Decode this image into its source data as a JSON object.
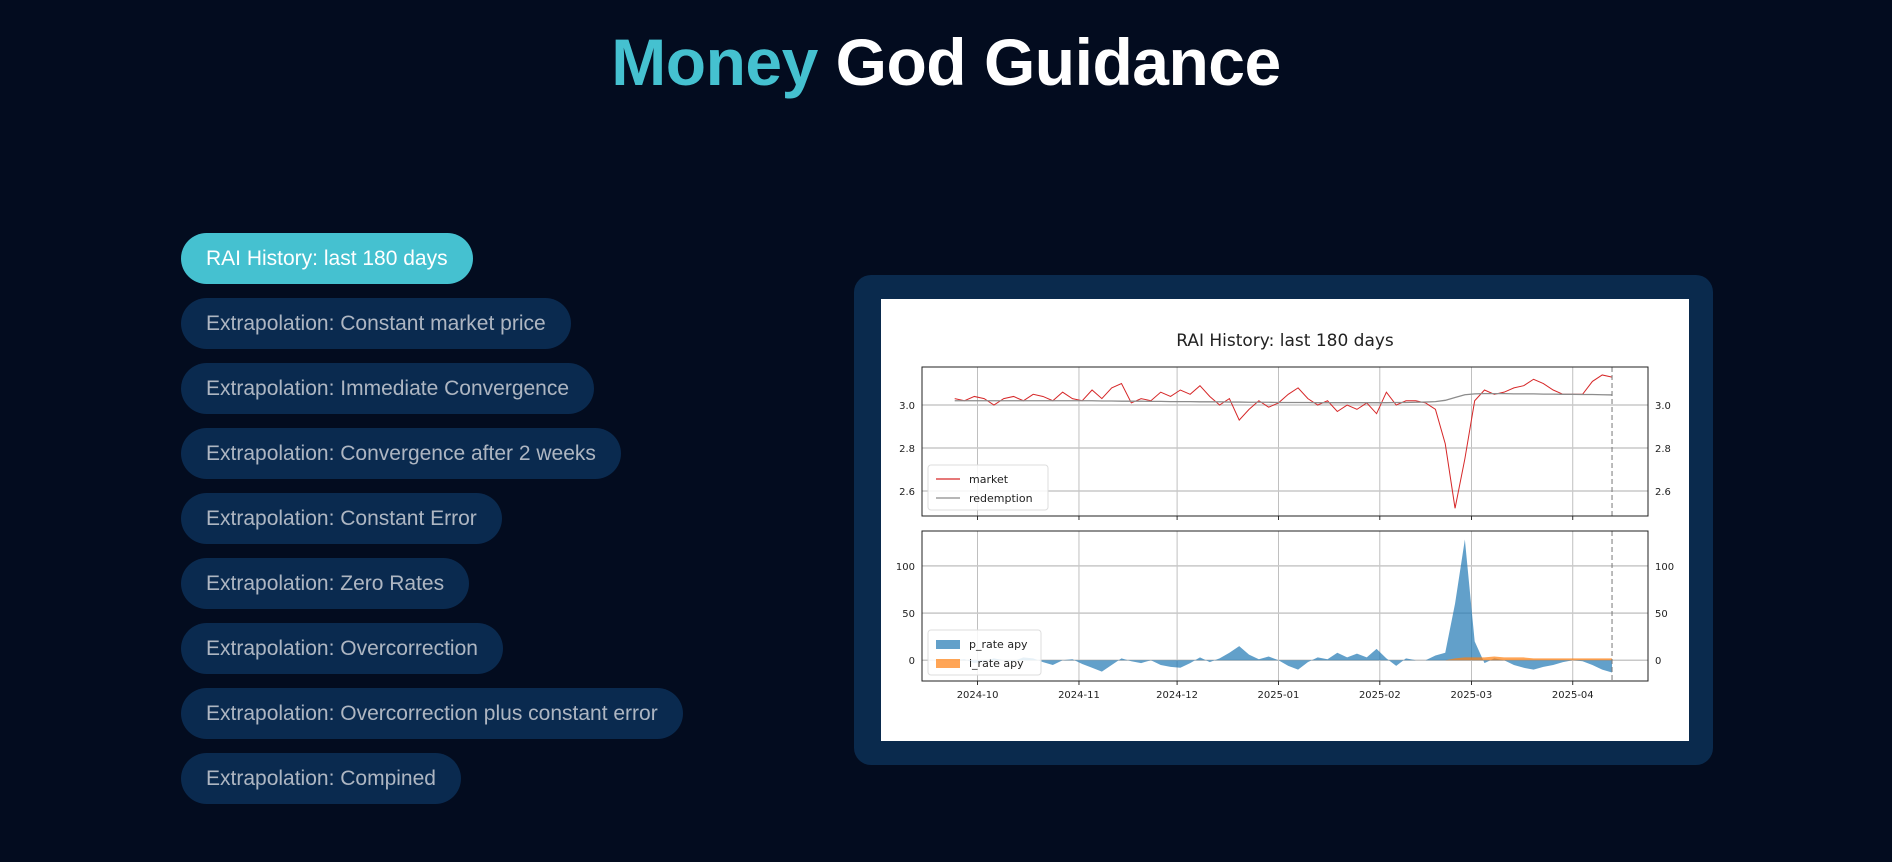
{
  "header": {
    "title_accent": "Money",
    "title_rest": "God Guidance"
  },
  "menu": {
    "items": [
      {
        "label": "RAI History: last 180 days",
        "active": true
      },
      {
        "label": "Extrapolation: Constant market price",
        "active": false
      },
      {
        "label": "Extrapolation: Immediate Convergence",
        "active": false
      },
      {
        "label": "Extrapolation: Convergence after 2 weeks",
        "active": false
      },
      {
        "label": "Extrapolation: Constant Error",
        "active": false
      },
      {
        "label": "Extrapolation: Zero Rates",
        "active": false
      },
      {
        "label": "Extrapolation: Overcorrection",
        "active": false
      },
      {
        "label": "Extrapolation: Overcorrection plus constant error",
        "active": false
      },
      {
        "label": "Extrapolation: Compined",
        "active": false
      }
    ]
  },
  "colors": {
    "accent": "#45c1d0",
    "market": "#d62728",
    "redemption": "#8c8c8c",
    "p_rate": "#1f77b4",
    "i_rate": "#ff7f0e"
  },
  "chart_data": {
    "type": "line",
    "title": "RAI History: last 180 days",
    "start_date": "2024-09-24",
    "step_days": 3,
    "x_range": [
      "2024-09-14",
      "2025-04-24"
    ],
    "now_marker": "2025-04-13",
    "x_ticks": [
      "2024-10",
      "2024-11",
      "2024-12",
      "2025-01",
      "2025-02",
      "2025-03",
      "2025-04"
    ],
    "grid": true,
    "panels": [
      {
        "ylim": [
          2.484,
          3.177
        ],
        "y_ticks": [
          "2.6",
          "2.8",
          "3.0"
        ],
        "legend": "lower-left",
        "series": [
          {
            "name": "market",
            "type": "line",
            "values": [
              3.03,
              3.02,
              3.04,
              3.03,
              3.0,
              3.03,
              3.04,
              3.02,
              3.05,
              3.04,
              3.02,
              3.06,
              3.03,
              3.02,
              3.07,
              3.03,
              3.08,
              3.1,
              3.01,
              3.03,
              3.02,
              3.06,
              3.04,
              3.07,
              3.05,
              3.09,
              3.04,
              3.0,
              3.03,
              2.93,
              2.98,
              3.02,
              2.99,
              3.01,
              3.05,
              3.08,
              3.03,
              3.0,
              3.02,
              2.97,
              3.0,
              2.98,
              3.01,
              2.96,
              3.06,
              3.0,
              3.02,
              3.02,
              3.01,
              2.98,
              2.82,
              2.52,
              2.75,
              3.02,
              3.07,
              3.05,
              3.06,
              3.08,
              3.09,
              3.12,
              3.1,
              3.07,
              3.05,
              3.05,
              3.05,
              3.11,
              3.14,
              3.13
            ]
          },
          {
            "name": "redemption",
            "type": "line",
            "values": [
              3.02,
              3.02,
              3.02,
              3.02,
              3.02,
              3.02,
              3.02,
              3.02,
              3.02,
              3.02,
              3.02,
              3.02,
              3.02,
              3.02,
              3.02,
              3.019,
              3.019,
              3.018,
              3.018,
              3.018,
              3.017,
              3.017,
              3.016,
              3.016,
              3.016,
              3.015,
              3.015,
              3.015,
              3.014,
              3.014,
              3.013,
              3.013,
              3.013,
              3.012,
              3.012,
              3.012,
              3.012,
              3.011,
              3.011,
              3.011,
              3.011,
              3.011,
              3.011,
              3.011,
              3.011,
              3.012,
              3.012,
              3.013,
              3.014,
              3.016,
              3.022,
              3.035,
              3.048,
              3.052,
              3.053,
              3.053,
              3.053,
              3.052,
              3.052,
              3.052,
              3.051,
              3.051,
              3.05,
              3.05,
              3.049,
              3.049,
              3.048,
              3.047
            ]
          }
        ]
      },
      {
        "ylim": [
          -22,
          137
        ],
        "y_ticks": [
          "0",
          "50",
          "100"
        ],
        "legend": "lower-left",
        "series": [
          {
            "name": "p_rate apy",
            "type": "area",
            "values": [
              0,
              1,
              -3,
              -1,
              2,
              0,
              -1,
              3,
              2,
              -2,
              -5,
              0,
              1,
              -4,
              -8,
              -12,
              -5,
              2,
              -1,
              -3,
              0,
              -5,
              -7,
              -8,
              -3,
              3,
              -2,
              2,
              8,
              15,
              6,
              1,
              4,
              0,
              -6,
              -10,
              -2,
              3,
              1,
              8,
              3,
              7,
              3,
              12,
              2,
              -6,
              2,
              0,
              0,
              5,
              8,
              60,
              128,
              20,
              -3,
              2,
              0,
              -5,
              -8,
              -10,
              -7,
              -5,
              -2,
              0,
              -1,
              -5,
              -10,
              -13
            ]
          },
          {
            "name": "i_rate apy",
            "type": "area",
            "values": [
              0,
              0,
              0,
              0,
              0,
              0,
              0,
              0,
              0,
              0,
              0,
              0,
              0,
              0,
              0,
              0,
              0,
              0,
              0,
              0,
              0,
              0,
              0,
              0,
              0,
              0,
              0,
              0,
              0,
              0,
              0,
              0,
              0,
              0,
              0,
              0,
              0,
              0,
              0,
              0,
              0,
              0,
              0,
              0,
              0,
              0,
              0,
              0,
              0,
              0,
              0,
              2,
              3,
              3,
              3,
              4,
              3,
              3,
              3,
              2,
              2,
              2,
              2,
              2,
              2,
              2,
              2,
              2
            ]
          }
        ]
      }
    ]
  }
}
